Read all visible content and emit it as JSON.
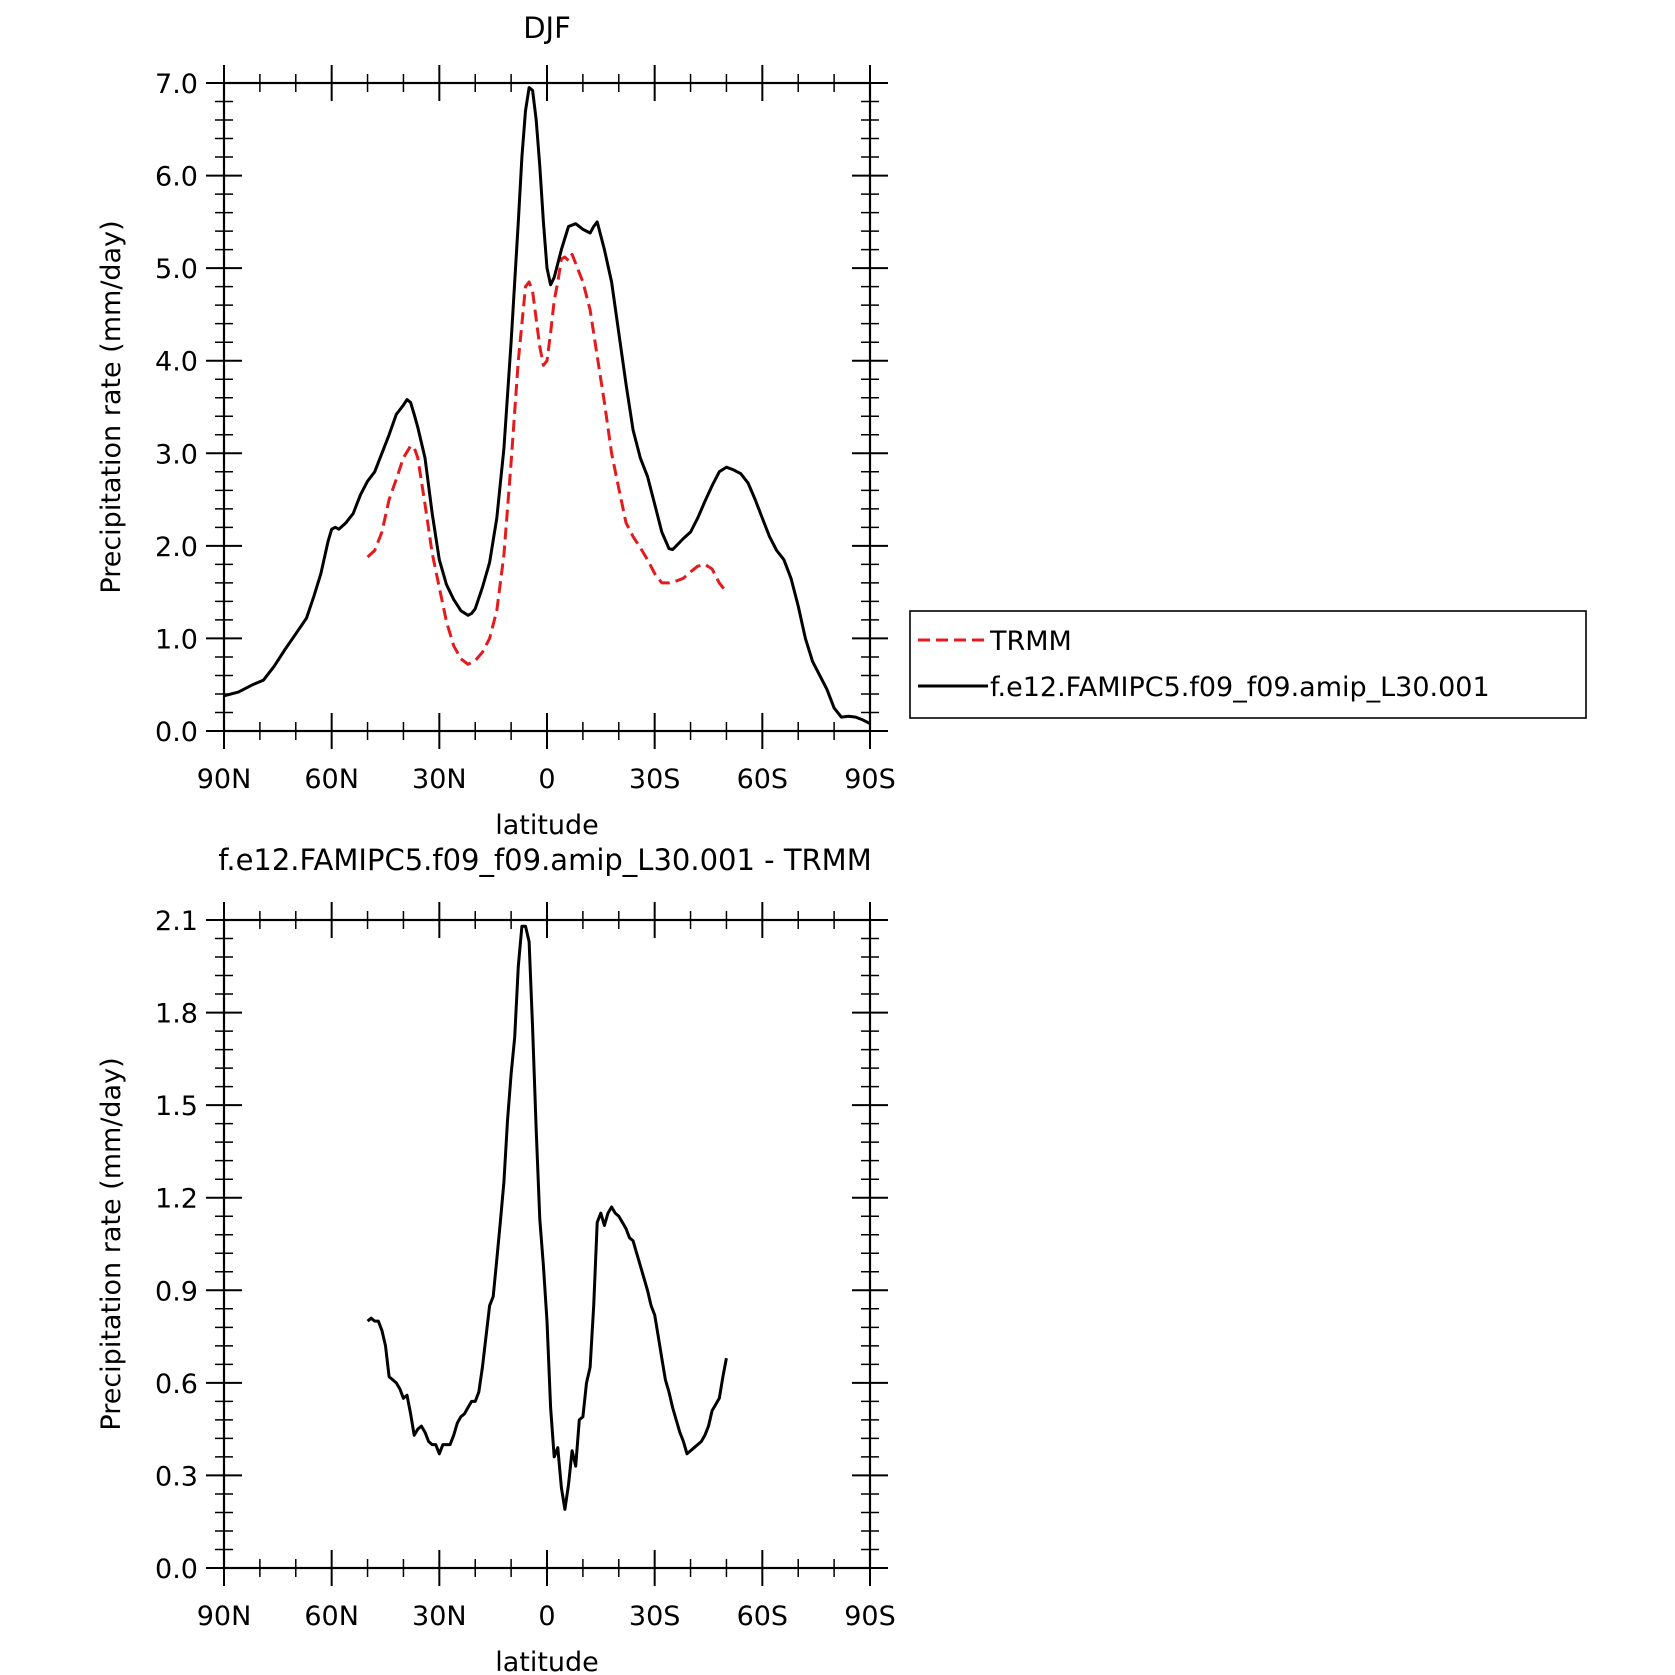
{
  "chart_data": [
    {
      "type": "line",
      "title": "DJF",
      "xlabel": "latitude",
      "ylabel": "Precipitation rate (mm/day)",
      "xlim": [
        -90,
        90
      ],
      "ylim": [
        0,
        7
      ],
      "xticks": [
        -90,
        -60,
        -30,
        0,
        30,
        60,
        90
      ],
      "xtick_labels": [
        "90N",
        "60N",
        "30N",
        "0",
        "30S",
        "60S",
        "90S"
      ],
      "yticks": [
        0,
        1,
        2,
        3,
        4,
        5,
        6,
        7
      ],
      "ytick_labels": [
        "0.0",
        "1.0",
        "2.0",
        "3.0",
        "4.0",
        "5.0",
        "6.0",
        "7.0"
      ],
      "legend_position": "right",
      "series": [
        {
          "name": "TRMM",
          "color": "#e41a1c",
          "dash": "dashed",
          "x": [
            -50,
            -48,
            -46,
            -44,
            -42,
            -40,
            -38,
            -37,
            -36,
            -34,
            -32,
            -30,
            -28,
            -26,
            -24,
            -22,
            -21,
            -20,
            -18,
            -16,
            -14,
            -12,
            -10,
            -8,
            -6,
            -5,
            -4,
            -3,
            -2,
            -1,
            0,
            1,
            2,
            3,
            4,
            5,
            6,
            7,
            8,
            9,
            10,
            11,
            12,
            14,
            16,
            18,
            20,
            22,
            24,
            26,
            28,
            30,
            32,
            34,
            36,
            38,
            40,
            42,
            44,
            46,
            48,
            50
          ],
          "y": [
            1.88,
            1.95,
            2.15,
            2.5,
            2.72,
            2.95,
            3.08,
            3.06,
            2.95,
            2.45,
            1.92,
            1.55,
            1.18,
            0.92,
            0.78,
            0.72,
            0.74,
            0.76,
            0.85,
            1.0,
            1.3,
            1.9,
            2.9,
            4.0,
            4.8,
            4.85,
            4.75,
            4.45,
            4.15,
            3.95,
            4.0,
            4.3,
            4.65,
            4.85,
            5.1,
            5.12,
            5.08,
            5.15,
            5.05,
            4.95,
            4.85,
            4.7,
            4.55,
            4.05,
            3.55,
            3.0,
            2.62,
            2.25,
            2.1,
            1.98,
            1.85,
            1.7,
            1.6,
            1.6,
            1.62,
            1.65,
            1.72,
            1.78,
            1.8,
            1.75,
            1.6,
            1.5
          ]
        },
        {
          "name": "f.e12.FAMIPC5.f09_f09.amip_L30.001",
          "color": "#000000",
          "dash": "solid",
          "x": [
            -90,
            -86,
            -82,
            -79,
            -76,
            -73,
            -70,
            -67,
            -65,
            -63,
            -61,
            -60,
            -59,
            -58,
            -56,
            -54,
            -52,
            -50,
            -48,
            -46,
            -44,
            -42,
            -40,
            -39,
            -38,
            -37,
            -36,
            -34,
            -32,
            -30,
            -28,
            -26,
            -24,
            -22,
            -21,
            -20,
            -18,
            -16,
            -14,
            -12,
            -10,
            -8,
            -7,
            -6,
            -5,
            -4,
            -3,
            -2,
            -1,
            0,
            1,
            2,
            4,
            6,
            8,
            10,
            12,
            13,
            14,
            16,
            18,
            20,
            22,
            24,
            26,
            28,
            30,
            32,
            34,
            35,
            36,
            38,
            40,
            42,
            44,
            46,
            48,
            50,
            52,
            54,
            56,
            58,
            60,
            62,
            64,
            66,
            68,
            70,
            72,
            74,
            76,
            78,
            80,
            82,
            84,
            86,
            88,
            90
          ],
          "y": [
            0.38,
            0.42,
            0.5,
            0.55,
            0.7,
            0.88,
            1.05,
            1.22,
            1.45,
            1.7,
            2.05,
            2.18,
            2.2,
            2.18,
            2.25,
            2.35,
            2.55,
            2.7,
            2.8,
            3.0,
            3.2,
            3.42,
            3.52,
            3.58,
            3.55,
            3.42,
            3.28,
            2.95,
            2.35,
            1.85,
            1.58,
            1.42,
            1.3,
            1.25,
            1.27,
            1.32,
            1.55,
            1.82,
            2.3,
            3.05,
            4.2,
            5.5,
            6.2,
            6.7,
            6.95,
            6.92,
            6.6,
            6.1,
            5.5,
            5.0,
            4.82,
            4.9,
            5.2,
            5.45,
            5.48,
            5.42,
            5.38,
            5.45,
            5.5,
            5.2,
            4.85,
            4.3,
            3.75,
            3.25,
            2.95,
            2.75,
            2.45,
            2.15,
            1.97,
            1.96,
            2.0,
            2.08,
            2.15,
            2.3,
            2.48,
            2.65,
            2.8,
            2.85,
            2.82,
            2.78,
            2.68,
            2.5,
            2.3,
            2.1,
            1.95,
            1.85,
            1.65,
            1.35,
            1.0,
            0.75,
            0.6,
            0.45,
            0.25,
            0.15,
            0.16,
            0.15,
            0.12,
            0.08
          ]
        }
      ]
    },
    {
      "type": "line",
      "title": "f.e12.FAMIPC5.f09_f09.amip_L30.001 - TRMM",
      "xlabel": "latitude",
      "ylabel": "Precipitation rate (mm/day)",
      "xlim": [
        -90,
        90
      ],
      "ylim": [
        0,
        2.1
      ],
      "xticks": [
        -90,
        -60,
        -30,
        0,
        30,
        60,
        90
      ],
      "xtick_labels": [
        "90N",
        "60N",
        "30N",
        "0",
        "30S",
        "60S",
        "90S"
      ],
      "yticks": [
        0,
        0.3,
        0.6,
        0.9,
        1.2,
        1.5,
        1.8,
        2.1
      ],
      "ytick_labels": [
        "0.0",
        "0.3",
        "0.6",
        "0.9",
        "1.2",
        "1.5",
        "1.8",
        "2.1"
      ],
      "series": [
        {
          "color": "#000000",
          "dash": "solid",
          "x": [
            -50,
            -49,
            -48,
            -47,
            -46,
            -45,
            -44,
            -43,
            -42,
            -41,
            -40,
            -39,
            -38,
            -37,
            -36,
            -35,
            -34,
            -33,
            -32,
            -31,
            -30,
            -29,
            -28,
            -27,
            -26,
            -25,
            -24,
            -23,
            -22,
            -21,
            -20,
            -19,
            -18,
            -17,
            -16,
            -15,
            -14,
            -13,
            -12,
            -11,
            -10,
            -9,
            -8,
            -7,
            -6,
            -5,
            -4,
            -3,
            -2,
            -1,
            0,
            1,
            2,
            3,
            4,
            5,
            6,
            7,
            8,
            9,
            10,
            11,
            12,
            13,
            14,
            15,
            16,
            17,
            18,
            19,
            20,
            21,
            22,
            23,
            24,
            25,
            26,
            27,
            28,
            29,
            30,
            31,
            32,
            33,
            34,
            35,
            36,
            37,
            38,
            39,
            40,
            41,
            42,
            43,
            44,
            45,
            46,
            47,
            48,
            49,
            50
          ],
          "y": [
            0.8,
            0.81,
            0.8,
            0.8,
            0.77,
            0.72,
            0.62,
            0.61,
            0.6,
            0.58,
            0.55,
            0.56,
            0.5,
            0.43,
            0.45,
            0.46,
            0.44,
            0.41,
            0.4,
            0.4,
            0.37,
            0.4,
            0.4,
            0.4,
            0.43,
            0.47,
            0.49,
            0.5,
            0.52,
            0.54,
            0.54,
            0.57,
            0.65,
            0.75,
            0.85,
            0.88,
            1.0,
            1.12,
            1.25,
            1.45,
            1.6,
            1.72,
            1.95,
            2.08,
            2.08,
            2.03,
            1.75,
            1.42,
            1.13,
            0.98,
            0.8,
            0.52,
            0.36,
            0.39,
            0.26,
            0.19,
            0.27,
            0.38,
            0.33,
            0.48,
            0.49,
            0.6,
            0.65,
            0.85,
            1.12,
            1.15,
            1.11,
            1.15,
            1.17,
            1.15,
            1.14,
            1.12,
            1.1,
            1.07,
            1.06,
            1.02,
            0.98,
            0.94,
            0.9,
            0.85,
            0.82,
            0.75,
            0.68,
            0.61,
            0.57,
            0.52,
            0.48,
            0.44,
            0.41,
            0.37,
            0.38,
            0.39,
            0.4,
            0.41,
            0.43,
            0.46,
            0.51,
            0.53,
            0.55,
            0.62,
            0.68
          ]
        }
      ]
    }
  ]
}
